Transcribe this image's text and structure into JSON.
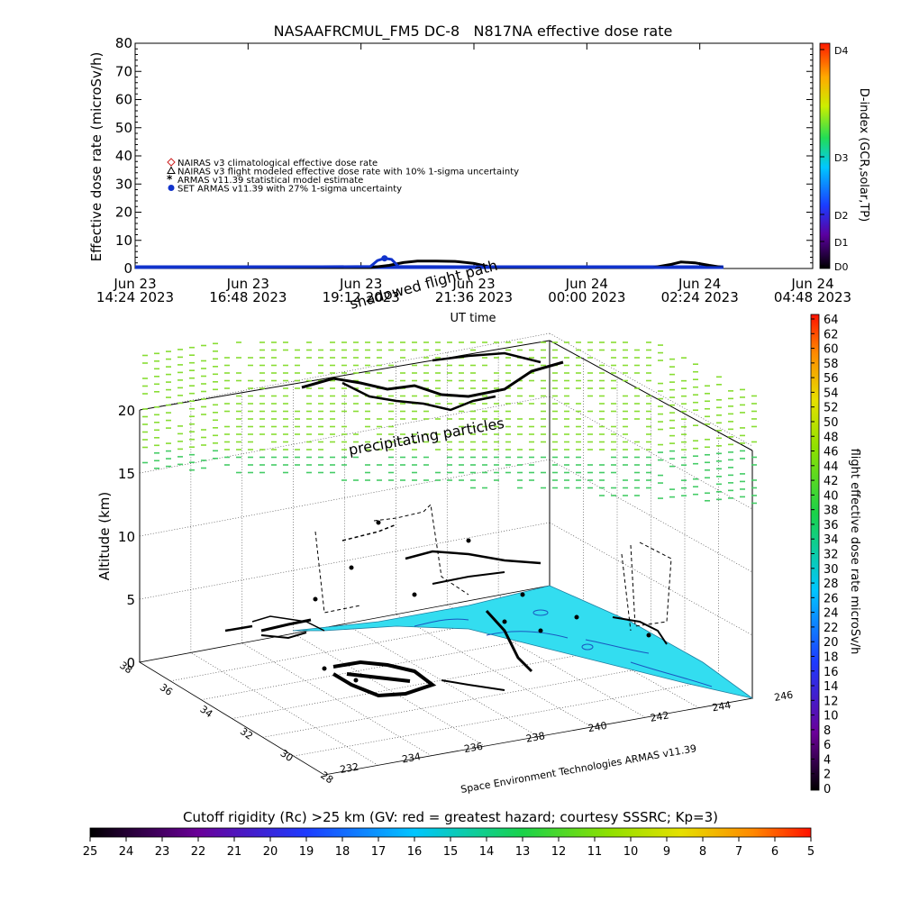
{
  "chart_data": [
    {
      "type": "line",
      "title": "NASAAFRCMUL_FM5 DC-8   N817NA effective dose rate",
      "ylabel": "Effective dose rate (microSv/h)",
      "xlabel": "UT time",
      "ylim": [
        0,
        80
      ],
      "yticks": [
        "0",
        "10",
        "20",
        "30",
        "40",
        "50",
        "60",
        "70",
        "80"
      ],
      "xtick_labels": [
        {
          "date": "Jun 23",
          "time": "14:24 2023"
        },
        {
          "date": "Jun 23",
          "time": "16:48 2023"
        },
        {
          "date": "Jun 23",
          "time": "19:12 2023"
        },
        {
          "date": "Jun 23",
          "time": "21:36 2023"
        },
        {
          "date": "Jun 24",
          "time": "00:00 2023"
        },
        {
          "date": "Jun 24",
          "time": "02:24 2023"
        },
        {
          "date": "Jun 24",
          "time": "04:48 2023"
        }
      ],
      "legend": [
        {
          "label": "NAIRAS v3 climatological effective dose rate",
          "marker": "diamond",
          "color": "#cc2222"
        },
        {
          "label": "NAIRAS v3 flight modeled effective dose rate with 10% 1-sigma uncertainty",
          "marker": "triangle",
          "color": "#000000"
        },
        {
          "label": "ARMAS v11.39 statistical model estimate",
          "marker": "asterisk",
          "color": "#44dd44"
        },
        {
          "label": "SET ARMAS v11.39 with 27% 1-sigma uncertainty",
          "marker": "dot",
          "color": "#1133cc"
        }
      ],
      "legend_position": "top-left",
      "series": [
        {
          "name": "NAIRAS v3 flight modeled effective dose rate with 10% 1-sigma uncertainty",
          "color": "#000000",
          "x_hours": [
            0,
            5.0,
            5.4,
            5.7,
            6.0,
            6.4,
            6.8,
            7.2,
            7.6,
            10.5,
            11.0,
            11.4,
            11.6,
            11.9,
            12.2,
            12.4,
            12.5
          ],
          "y": [
            0,
            0,
            0.8,
            1.8,
            2.3,
            2.3,
            2.2,
            1.5,
            0,
            0,
            0,
            1.2,
            2.0,
            1.7,
            0.8,
            0.3,
            0
          ]
        },
        {
          "name": "SET ARMAS v11.39 with 27% 1-sigma uncertainty",
          "color": "#1133cc",
          "x_hours": [
            0,
            5.0,
            5.15,
            5.3,
            5.45,
            5.6,
            12.5
          ],
          "y": [
            0,
            0.4,
            2.5,
            3.3,
            2.9,
            0.4,
            0
          ]
        }
      ],
      "colorbar": {
        "label": "D-index (GCR,solar,TP)",
        "ticks": [
          "D4",
          "D3",
          "D2",
          "D1",
          "D0"
        ]
      }
    },
    {
      "type": "scatter",
      "title": "",
      "zlabel": "Altitude (km)",
      "zlim": [
        0,
        20
      ],
      "zticks": [
        "0",
        "5",
        "10",
        "15",
        "20"
      ],
      "longitude_ticks": [
        "232",
        "234",
        "236",
        "238",
        "240",
        "242",
        "244",
        "246"
      ],
      "latitude_ticks": [
        "28",
        "30",
        "32",
        "34",
        "36",
        "38"
      ],
      "annotations": [
        "shadowed flight path",
        "precipitating particles"
      ],
      "credit": "Space Environment Technologies ARMAS v11.39",
      "colorbar": {
        "label": "flight effective dose rate microSv/h",
        "ticks": [
          "0",
          "2",
          "4",
          "6",
          "8",
          "10",
          "12",
          "14",
          "16",
          "18",
          "20",
          "22",
          "24",
          "26",
          "28",
          "30",
          "32",
          "34",
          "36",
          "38",
          "40",
          "42",
          "44",
          "46",
          "48",
          "50",
          "52",
          "54",
          "56",
          "58",
          "60",
          "62",
          "64"
        ]
      },
      "cutoff_rigidity": {
        "title": "Cutoff rigidity (Rc) >25 km (GV: red = greatest hazard; courtesy SSSRC; Kp=3)",
        "ticks": [
          "25",
          "24",
          "23",
          "22",
          "21",
          "20",
          "19",
          "18",
          "17",
          "16",
          "15",
          "14",
          "13",
          "12",
          "11",
          "10",
          "9",
          "8",
          "7",
          "6",
          "5"
        ]
      },
      "colors": {
        "map_fill": "#33ddf0",
        "particles": "#88dd33",
        "flight_path": "#000000"
      }
    }
  ]
}
